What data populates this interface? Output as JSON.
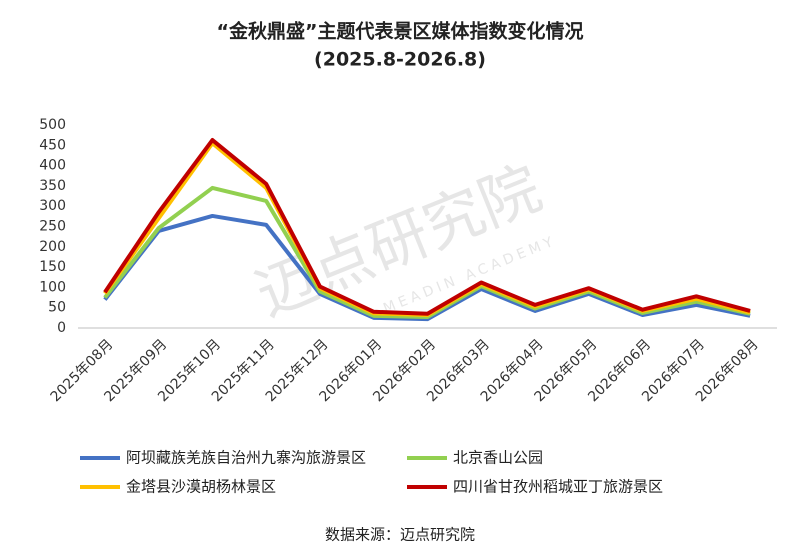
{
  "chart_data": {
    "type": "line",
    "title": "“金秋鼎盛”主题代表景区媒体指数变化情况",
    "subtitle": "(2025.8-2026.8)",
    "source": "数据来源：迈点研究院",
    "watermark": "迈点研究院",
    "watermark_sub": "MEADIN ACADEMY",
    "categories": [
      "2025年08月",
      "2025年09月",
      "2025年10月",
      "2025年11月",
      "2025年12月",
      "2026年01月",
      "2026年02月",
      "2026年03月",
      "2026年04月",
      "2026年05月",
      "2026年06月",
      "2026年07月",
      "2026年08月"
    ],
    "ylim": [
      0,
      500
    ],
    "yticks": [
      0,
      50,
      100,
      150,
      200,
      250,
      300,
      350,
      400,
      450,
      500
    ],
    "grid": false,
    "series": [
      {
        "name": "阿坝藏族羌族自治州九寨沟旅游景区",
        "color": "#4472c4",
        "values": [
          70,
          239,
          276,
          254,
          84,
          25,
          22,
          96,
          42,
          84,
          32,
          57,
          30
        ]
      },
      {
        "name": "北京香山公园",
        "color": "#92d050",
        "values": [
          75,
          246,
          345,
          313,
          90,
          30,
          27,
          103,
          48,
          90,
          37,
          65,
          35
        ]
      },
      {
        "name": "金塔县沙漠胡杨林景区",
        "color": "#ffc000",
        "values": [
          85,
          270,
          455,
          345,
          98,
          36,
          32,
          108,
          53,
          95,
          42,
          72,
          38
        ]
      },
      {
        "name": "四川省甘孜州稻城亚丁旅游景区",
        "color": "#c00000",
        "values": [
          88,
          285,
          463,
          355,
          102,
          40,
          35,
          112,
          57,
          98,
          45,
          78,
          42
        ]
      }
    ]
  }
}
